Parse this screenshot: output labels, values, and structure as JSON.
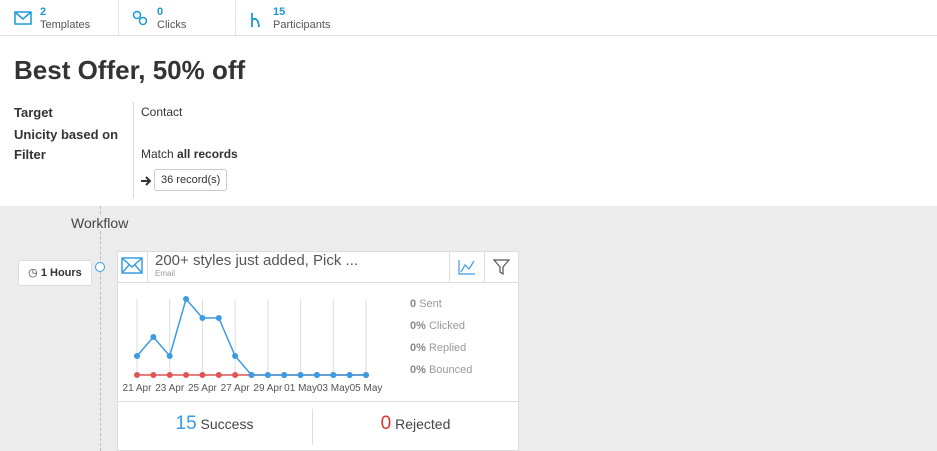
{
  "tabs": [
    {
      "count": 2,
      "label": "Templates"
    },
    {
      "count": 0,
      "label": "Clicks"
    },
    {
      "count": 15,
      "label": "Participants"
    }
  ],
  "title": "Best Offer, 50% off",
  "details": [
    {
      "label": "Target",
      "value": "Contact"
    },
    {
      "label": "Unicity based on"
    },
    {
      "label": "Filter",
      "value": "Match",
      "value_bold": "all records"
    }
  ],
  "records_button": "36 record(s)",
  "workflow": {
    "heading": "Workflow",
    "delay": "1 Hours",
    "step": {
      "title": "200+ styles just added, Pick ...",
      "channel": "Email",
      "stats": [
        {
          "value": "0",
          "label": "Sent"
        },
        {
          "value": "0%",
          "label": "Clicked"
        },
        {
          "value": "0%",
          "label": "Replied"
        },
        {
          "value": "0%",
          "label": "Bounced"
        }
      ],
      "success": {
        "count": 15,
        "label": "Success"
      },
      "rejected": {
        "count": 0,
        "label": "Rejected"
      }
    }
  },
  "chart_data": {
    "type": "line",
    "categories": [
      "21 Apr",
      null,
      "23 Apr",
      null,
      "25 Apr",
      null,
      "27 Apr",
      null,
      "29 Apr",
      null,
      "01 May",
      null,
      "03 May",
      null,
      "05 May"
    ],
    "series": [
      {
        "color": "#dd5555",
        "values": [
          0,
          0,
          0,
          0,
          0,
          0,
          0,
          0,
          0,
          0,
          0,
          0,
          0,
          0,
          0
        ]
      },
      {
        "color": "#3a9be6",
        "values": [
          1,
          2,
          1,
          4,
          3,
          3,
          1,
          0,
          0,
          0,
          0,
          0,
          0,
          0,
          0
        ]
      }
    ],
    "ylim": [
      0,
      4
    ],
    "grid": true
  }
}
